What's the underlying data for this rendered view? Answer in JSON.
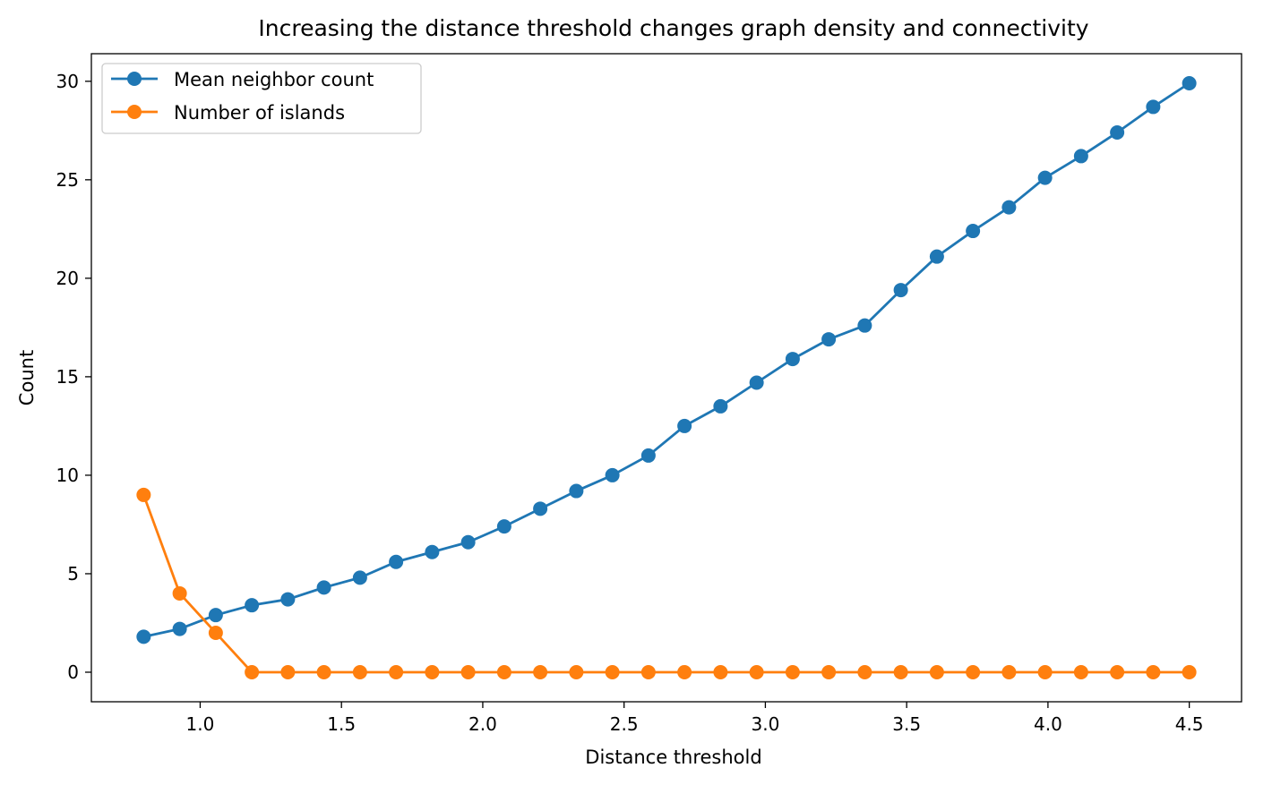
{
  "chart_data": {
    "type": "line",
    "title": "Increasing the distance threshold changes graph density and connectivity",
    "xlabel": "Distance threshold",
    "ylabel": "Count",
    "xlim": [
      0.615,
      4.685
    ],
    "ylim": [
      -1.5,
      31.4
    ],
    "xticks": [
      1.0,
      1.5,
      2.0,
      2.5,
      3.0,
      3.5,
      4.0,
      4.5
    ],
    "xtick_labels": [
      "1.0",
      "1.5",
      "2.0",
      "2.5",
      "3.0",
      "3.5",
      "4.0",
      "4.5"
    ],
    "yticks": [
      0,
      5,
      10,
      15,
      20,
      25,
      30
    ],
    "ytick_labels": [
      "0",
      "5",
      "10",
      "15",
      "20",
      "25",
      "30"
    ],
    "grid": false,
    "legend_position": "top-left",
    "x": [
      0.8,
      0.9276,
      1.0552,
      1.1828,
      1.3103,
      1.4379,
      1.5655,
      1.6931,
      1.8207,
      1.9483,
      2.0759,
      2.2034,
      2.331,
      2.4586,
      2.5862,
      2.7138,
      2.8414,
      2.969,
      3.0966,
      3.2241,
      3.3517,
      3.4793,
      3.6069,
      3.7345,
      3.8621,
      3.9897,
      4.1172,
      4.2448,
      4.3724,
      4.5
    ],
    "series": [
      {
        "name": "Mean neighbor count",
        "color": "#1f77b4",
        "values": [
          1.8,
          2.2,
          2.9,
          3.4,
          3.7,
          4.3,
          4.8,
          5.6,
          6.1,
          6.6,
          7.4,
          8.3,
          9.2,
          10.0,
          11.0,
          12.5,
          13.5,
          14.7,
          15.9,
          16.9,
          17.6,
          19.4,
          21.1,
          22.4,
          23.6,
          25.1,
          26.2,
          27.4,
          28.7,
          29.9
        ]
      },
      {
        "name": "Number of islands",
        "color": "#ff7f0e",
        "values": [
          9,
          4,
          2,
          0,
          0,
          0,
          0,
          0,
          0,
          0,
          0,
          0,
          0,
          0,
          0,
          0,
          0,
          0,
          0,
          0,
          0,
          0,
          0,
          0,
          0,
          0,
          0,
          0,
          0,
          0
        ]
      }
    ]
  }
}
